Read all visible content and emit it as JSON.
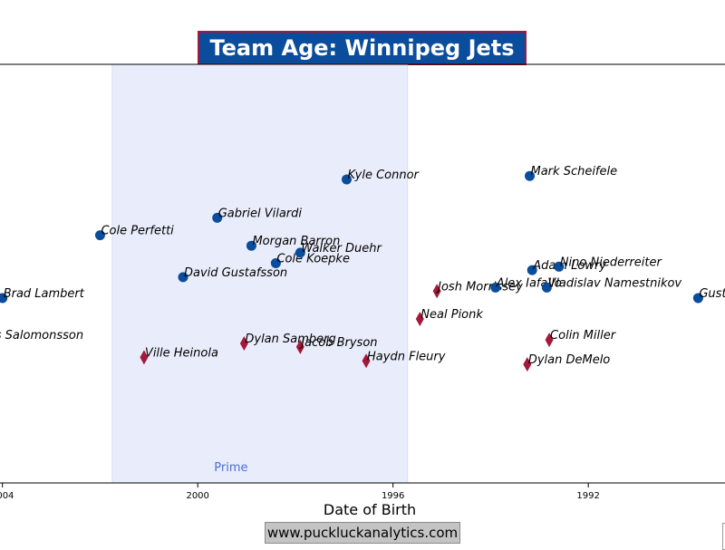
{
  "chart_data": {
    "type": "scatter",
    "title": "Team Age: Winnipeg Jets",
    "xlabel": "Date of Birth",
    "ylabel": "",
    "x_reversed": true,
    "xlim": [
      2004.05,
      1989.2
    ],
    "x_ticks": [
      2004,
      2000,
      1996,
      1992
    ],
    "grid": false,
    "region": {
      "label": "Prime",
      "x_from": 2001.75,
      "x_to": 1995.7,
      "color": "#e9edfb"
    },
    "colors": {
      "forward": "#0a4d9c",
      "defense": "#a5183a",
      "region_label": "#4a6fd4"
    },
    "points": [
      {
        "name": "Brad Lambert",
        "x": 2004.0,
        "y": 5.3,
        "marker": "circle"
      },
      {
        "name": "Elias Salomonsson",
        "x": 2004.6,
        "y": 4.1,
        "marker": "diamond"
      },
      {
        "name": "Cole Perfetti",
        "x": 2002.0,
        "y": 7.1,
        "marker": "circle"
      },
      {
        "name": "Ville Heinola",
        "x": 2001.1,
        "y": 3.6,
        "marker": "diamond"
      },
      {
        "name": "David Gustafsson",
        "x": 2000.3,
        "y": 5.9,
        "marker": "circle"
      },
      {
        "name": "Gabriel Vilardi",
        "x": 1999.6,
        "y": 7.6,
        "marker": "circle"
      },
      {
        "name": "Dylan Samberg",
        "x": 1999.05,
        "y": 4.0,
        "marker": "diamond"
      },
      {
        "name": "Morgan Barron",
        "x": 1998.9,
        "y": 6.8,
        "marker": "circle"
      },
      {
        "name": "Cole Koepke",
        "x": 1998.4,
        "y": 6.3,
        "marker": "circle"
      },
      {
        "name": "Walker Duehr",
        "x": 1997.9,
        "y": 6.6,
        "marker": "circle"
      },
      {
        "name": "Jacob Bryson",
        "x": 1997.9,
        "y": 3.9,
        "marker": "diamond"
      },
      {
        "name": "Kyle Connor",
        "x": 1996.95,
        "y": 8.7,
        "marker": "circle"
      },
      {
        "name": "Haydn Fleury",
        "x": 1996.55,
        "y": 3.5,
        "marker": "diamond"
      },
      {
        "name": "Neal Pionk",
        "x": 1995.45,
        "y": 4.7,
        "marker": "diamond"
      },
      {
        "name": "Josh Morrissey",
        "x": 1995.1,
        "y": 5.5,
        "marker": "diamond"
      },
      {
        "name": "Alex Iafallo",
        "x": 1993.9,
        "y": 5.6,
        "marker": "circle"
      },
      {
        "name": "Dylan DeMelo",
        "x": 1993.25,
        "y": 3.4,
        "marker": "diamond"
      },
      {
        "name": "Adam Lowry",
        "x": 1993.15,
        "y": 6.1,
        "marker": "circle"
      },
      {
        "name": "Mark Scheifele",
        "x": 1993.2,
        "y": 8.8,
        "marker": "circle"
      },
      {
        "name": "Vladislav Namestnikov",
        "x": 1992.85,
        "y": 5.6,
        "marker": "circle"
      },
      {
        "name": "Colin Miller",
        "x": 1992.8,
        "y": 4.1,
        "marker": "diamond"
      },
      {
        "name": "Nino Niederreiter",
        "x": 1992.6,
        "y": 6.2,
        "marker": "circle"
      },
      {
        "name": "Gustav Nyquist",
        "x": 1989.75,
        "y": 5.3,
        "marker": "circle"
      }
    ]
  },
  "footer": {
    "text": "www.puckluckanalytics.com"
  }
}
